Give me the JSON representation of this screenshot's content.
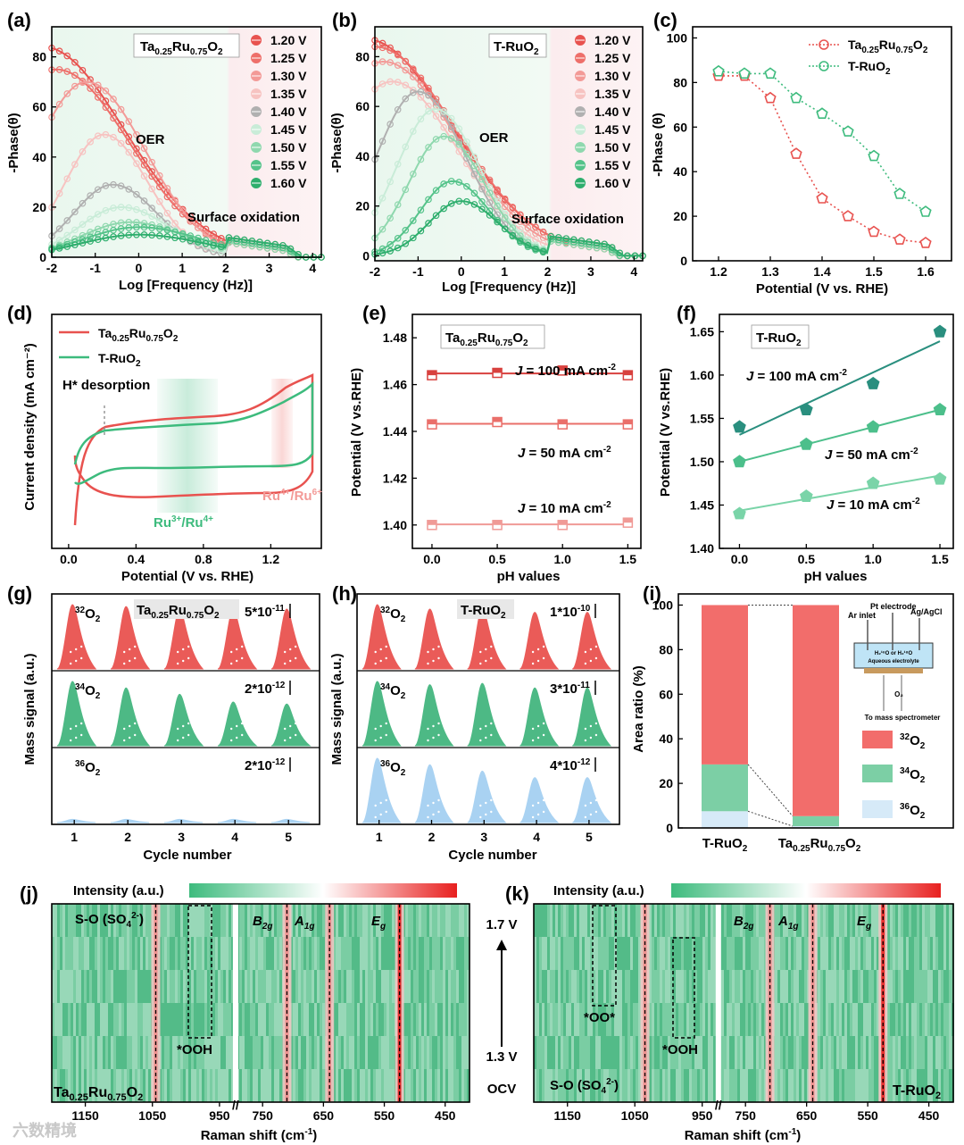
{
  "watermark": "六数精境",
  "panels": {
    "a": {
      "label": "(a)",
      "title": "Ta0.25Ru0.75O2",
      "xlabel": "Log [Frequency (Hz)]",
      "ylabel": "-Phase(θ)",
      "ann_oer": "OER",
      "ann_so": "Surface oxidation"
    },
    "b": {
      "label": "(b)",
      "title": "T-RuO2",
      "xlabel": "Log [Frequency (Hz)]",
      "ylabel": "-Phase(θ)",
      "ann_oer": "OER",
      "ann_so": "Surface oxidation"
    },
    "c": {
      "label": "(c)",
      "xlabel": "Potential (V vs. RHE)",
      "ylabel": "-Phase (θ)"
    },
    "d": {
      "label": "(d)",
      "xlabel": "Potential (V vs. RHE)",
      "ylabel": "Current density (mA cm⁻²)",
      "ann_h": "H* desorption",
      "ann_ru34": "Ru3+/Ru4+",
      "ann_ru46": "Ru4+/Ru6+",
      "legend": [
        "Ta0.25Ru0.75O2",
        "T-RuO2"
      ]
    },
    "e": {
      "label": "(e)",
      "title": "Ta0.25Ru0.75O2",
      "xlabel": "pH values",
      "ylabel": "Potential (V vs.RHE)"
    },
    "f": {
      "label": "(f)",
      "title": "T-RuO2",
      "xlabel": "pH values",
      "ylabel": "Potential (V vs.RHE)"
    },
    "g": {
      "label": "(g)",
      "title": "Ta0.25Ru0.75O2",
      "xlabel": "Cycle number",
      "ylabel": "Mass signal (a.u.)",
      "scales": [
        "5*10-11",
        "2*10-12",
        "2*10-12"
      ]
    },
    "h": {
      "label": "(h)",
      "title": "T-RuO2",
      "xlabel": "Cycle number",
      "ylabel": "Mass signal (a.u.)",
      "scales": [
        "1*10-10",
        "3*10-11",
        "4*10-12"
      ]
    },
    "i": {
      "label": "(i)",
      "ylabel": "Area ratio (%)",
      "legend": [
        "32O2",
        "34O2",
        "36O2"
      ],
      "schematic": {
        "ar_inlet": "Ar inlet",
        "pt": "Pt  electrode",
        "ag": "Ag/AgCl",
        "electrolyte1": "H₂¹⁶O or H₂¹⁸O",
        "electrolyte2": "Aqueous electrolyte",
        "o2": "O₂",
        "ms": "To mass spectrometer"
      }
    },
    "j": {
      "label": "(j)",
      "sample": "Ta0.25Ru0.75O2",
      "intensity": "Intensity (a.u.)",
      "xlabel": "Raman shift (cm-1)",
      "ann_so": "S-O (SO42-)",
      "ann_ooh": "*OOH"
    },
    "k": {
      "label": "(k)",
      "sample": "T-RuO2",
      "intensity": "Intensity (a.u.)",
      "xlabel": "Raman shift (cm-1)",
      "ann_so": "S-O (SO42-)",
      "ann_oo": "*OO*",
      "ann_ooh": "*OOH",
      "v_top": "1.7 V",
      "v_bottom": "1.3 V",
      "ocv": "OCV"
    }
  },
  "colors": {
    "red": "#e8524f",
    "green": "#3dbb7d",
    "blue": "#a9d2f2",
    "darkgreen": "#2f9a7a"
  },
  "chart_data": [
    {
      "id": "a",
      "type": "line",
      "title": "Ta0.25Ru0.75O2",
      "xlabel": "Log [Frequency (Hz)]",
      "ylabel": "-Phase(θ)",
      "xlim": [
        -2,
        4.2
      ],
      "ylim": [
        0,
        92
      ],
      "xticks": [
        -2,
        -1,
        0,
        1,
        2,
        3,
        4
      ],
      "yticks": [
        0,
        20,
        40,
        60,
        80
      ],
      "series": [
        {
          "name": "1.20 V",
          "color": "#e8524f",
          "peak_x": -2.2,
          "peak_y": 84,
          "width": 2.2
        },
        {
          "name": "1.25 V",
          "color": "#ee6f6a",
          "peak_x": -1.9,
          "peak_y": 75,
          "width": 2.0
        },
        {
          "name": "1.30 V",
          "color": "#f39a97",
          "peak_x": -1.2,
          "peak_y": 70,
          "width": 1.6
        },
        {
          "name": "1.35 V",
          "color": "#f7c3c1",
          "peak_x": -0.8,
          "peak_y": 49,
          "width": 1.2
        },
        {
          "name": "1.40 V",
          "color": "#b0b0b0",
          "peak_x": -0.6,
          "peak_y": 29,
          "width": 1.2
        },
        {
          "name": "1.45 V",
          "color": "#c9ecd8",
          "peak_x": -0.4,
          "peak_y": 20,
          "width": 1.3
        },
        {
          "name": "1.50 V",
          "color": "#8fd8ae",
          "peak_x": -0.2,
          "peak_y": 14,
          "width": 1.5
        },
        {
          "name": "1.55 V",
          "color": "#55c38a",
          "peak_x": 0.0,
          "peak_y": 12,
          "width": 1.7
        },
        {
          "name": "1.60 V",
          "color": "#2eae6d",
          "peak_x": 0.0,
          "peak_y": 9,
          "width": 1.8
        }
      ]
    },
    {
      "id": "b",
      "type": "line",
      "title": "T-RuO2",
      "xlabel": "Log [Frequency (Hz)]",
      "ylabel": "-Phase(θ)",
      "xlim": [
        -2,
        4.2
      ],
      "ylim": [
        -2,
        92
      ],
      "xticks": [
        -2,
        -1,
        0,
        1,
        2,
        3,
        4
      ],
      "yticks": [
        0,
        20,
        40,
        60,
        80
      ],
      "series": [
        {
          "name": "1.20 V",
          "color": "#e8524f",
          "peak_x": -2.2,
          "peak_y": 87,
          "width": 2.3
        },
        {
          "name": "1.25 V",
          "color": "#ee6f6a",
          "peak_x": -2.0,
          "peak_y": 84,
          "width": 2.2
        },
        {
          "name": "1.30 V",
          "color": "#f39a97",
          "peak_x": -1.8,
          "peak_y": 78,
          "width": 2.0
        },
        {
          "name": "1.35 V",
          "color": "#f7c3c1",
          "peak_x": -1.6,
          "peak_y": 70,
          "width": 1.8
        },
        {
          "name": "1.40 V",
          "color": "#b0b0b0",
          "peak_x": -1.0,
          "peak_y": 66,
          "width": 1.3
        },
        {
          "name": "1.45 V",
          "color": "#c9ecd8",
          "peak_x": -0.6,
          "peak_y": 59,
          "width": 1.2
        },
        {
          "name": "1.50 V",
          "color": "#8fd8ae",
          "peak_x": -0.4,
          "peak_y": 48,
          "width": 1.1
        },
        {
          "name": "1.55 V",
          "color": "#55c38a",
          "peak_x": -0.2,
          "peak_y": 30,
          "width": 1.0
        },
        {
          "name": "1.60 V",
          "color": "#2eae6d",
          "peak_x": 0.0,
          "peak_y": 22,
          "width": 1.0
        }
      ]
    },
    {
      "id": "c",
      "type": "line",
      "xlabel": "Potential (V vs. RHE)",
      "ylabel": "-Phase (θ)",
      "xlim": [
        1.15,
        1.65
      ],
      "ylim": [
        0,
        105
      ],
      "xticks": [
        1.2,
        1.3,
        1.4,
        1.5,
        1.6
      ],
      "yticks": [
        0,
        20,
        40,
        60,
        80,
        100
      ],
      "x": [
        1.2,
        1.25,
        1.3,
        1.35,
        1.4,
        1.45,
        1.5,
        1.55,
        1.6
      ],
      "series": [
        {
          "name": "Ta0.25Ru0.75O2",
          "color": "#e8524f",
          "values": [
            83,
            83,
            73,
            48,
            28,
            20,
            13,
            9.5,
            8
          ]
        },
        {
          "name": "T-RuO2",
          "color": "#3dbb7d",
          "values": [
            85,
            84,
            84,
            73,
            66,
            58,
            47,
            30,
            22
          ]
        }
      ]
    },
    {
      "id": "d",
      "type": "line",
      "xlabel": "Potential (V vs. RHE)",
      "ylabel": "Current density (mA cm-2)",
      "xlim": [
        -0.1,
        1.5
      ],
      "xticks": [
        0.0,
        0.4,
        0.8,
        1.2
      ],
      "series": [
        {
          "name": "Ta0.25Ru0.75O2",
          "color": "#e8524f"
        },
        {
          "name": "T-RuO2",
          "color": "#3dbb7d"
        }
      ]
    },
    {
      "id": "e",
      "type": "scatter",
      "title": "Ta0.25Ru0.75O2",
      "xlabel": "pH values",
      "ylabel": "Potential (V vs.RHE)",
      "xlim": [
        -0.15,
        1.6
      ],
      "ylim": [
        1.39,
        1.49
      ],
      "xticks": [
        0.0,
        0.5,
        1.0,
        1.5
      ],
      "yticks": [
        1.4,
        1.42,
        1.44,
        1.46,
        1.48
      ],
      "x": [
        0.0,
        0.5,
        1.0,
        1.5
      ],
      "series": [
        {
          "name": "J = 100 mA cm-2",
          "color": "#d8413e",
          "values": [
            1.464,
            1.465,
            1.466,
            1.464
          ]
        },
        {
          "name": "J = 50 mA cm-2",
          "color": "#ea6f6a",
          "values": [
            1.443,
            1.444,
            1.443,
            1.443
          ]
        },
        {
          "name": "J = 10 mA cm-2",
          "color": "#f09a96",
          "values": [
            1.4,
            1.4,
            1.4,
            1.401
          ]
        }
      ]
    },
    {
      "id": "f",
      "type": "scatter",
      "title": "T-RuO2",
      "xlabel": "pH values",
      "ylabel": "Potential (V vs.RHE)",
      "xlim": [
        -0.15,
        1.6
      ],
      "ylim": [
        1.4,
        1.67
      ],
      "xticks": [
        0.0,
        0.5,
        1.0,
        1.5
      ],
      "yticks": [
        1.4,
        1.45,
        1.5,
        1.55,
        1.6,
        1.65
      ],
      "x": [
        0.0,
        0.5,
        1.0,
        1.5
      ],
      "series": [
        {
          "name": "J = 100 mA cm-2",
          "color": "#2a8f7f",
          "values": [
            1.54,
            1.56,
            1.59,
            1.65
          ]
        },
        {
          "name": "J = 50 mA cm-2",
          "color": "#4cbf8b",
          "values": [
            1.5,
            1.52,
            1.54,
            1.56
          ]
        },
        {
          "name": "J = 10 mA cm-2",
          "color": "#7ad4a8",
          "values": [
            1.44,
            1.46,
            1.475,
            1.48
          ]
        }
      ]
    },
    {
      "id": "g",
      "type": "area",
      "title": "Ta0.25Ru0.75O2",
      "xlabel": "Cycle number",
      "ylabel": "Mass signal (a.u.)",
      "categories": [
        "1",
        "2",
        "3",
        "4",
        "5"
      ],
      "series": [
        {
          "name": "32O2",
          "color": "#ea5b58",
          "values": [
            1,
            0.97,
            0.93,
            0.93,
            0.93
          ]
        },
        {
          "name": "34O2",
          "color": "#4db985",
          "values": [
            1,
            0.9,
            0.8,
            0.68,
            0.65
          ]
        },
        {
          "name": "36O2",
          "color": "#a9d2f2",
          "values": [
            0.05,
            0.05,
            0.05,
            0.05,
            0.05
          ]
        }
      ]
    },
    {
      "id": "h",
      "type": "area",
      "title": "T-RuO2",
      "xlabel": "Cycle number",
      "ylabel": "Mass signal (a.u.)",
      "categories": [
        "1",
        "2",
        "3",
        "4",
        "5"
      ],
      "series": [
        {
          "name": "32O2",
          "color": "#ea5b58",
          "values": [
            1,
            0.93,
            0.95,
            0.88,
            0.88
          ]
        },
        {
          "name": "34O2",
          "color": "#4db985",
          "values": [
            1,
            0.95,
            0.97,
            0.9,
            0.9
          ]
        },
        {
          "name": "36O2",
          "color": "#a9d2f2",
          "values": [
            1,
            0.9,
            0.8,
            0.7,
            0.7
          ]
        }
      ]
    },
    {
      "id": "i",
      "type": "bar",
      "stacked": true,
      "ylabel": "Area ratio (%)",
      "ylim": [
        0,
        105
      ],
      "yticks": [
        0,
        20,
        40,
        60,
        80,
        100
      ],
      "categories": [
        "T-RuO2",
        "Ta0.25Ru0.75O2"
      ],
      "series": [
        {
          "name": "36O2",
          "color": "#d6eaf8",
          "values": [
            7.5,
            0.8
          ]
        },
        {
          "name": "34O2",
          "color": "#7ccfa5",
          "values": [
            21,
            4.5
          ]
        },
        {
          "name": "32O2",
          "color": "#f26d6b",
          "values": [
            71.5,
            94.7
          ]
        }
      ]
    },
    {
      "id": "j",
      "type": "heatmap",
      "sample": "Ta0.25Ru0.75O2",
      "xlabel": "Raman shift (cm-1)",
      "xticks_left": [
        1150,
        1050,
        950
      ],
      "xticks_right": [
        750,
        650,
        550,
        450
      ],
      "xrange_left": [
        1200,
        930
      ],
      "xrange_right": [
        790,
        410
      ],
      "peaks": [
        {
          "name": "B2g",
          "x": 710
        },
        {
          "name": "A1g",
          "x": 640
        },
        {
          "name": "Eg",
          "x": 525
        },
        {
          "name": "S-O",
          "x": 1045
        }
      ],
      "rows": 6
    },
    {
      "id": "k",
      "type": "heatmap",
      "sample": "T-RuO2",
      "xlabel": "Raman shift (cm-1)",
      "xticks_left": [
        1150,
        1050,
        950
      ],
      "xticks_right": [
        750,
        650,
        550,
        450
      ],
      "xrange_left": [
        1200,
        930
      ],
      "xrange_right": [
        790,
        410
      ],
      "peaks": [
        {
          "name": "B2g",
          "x": 710
        },
        {
          "name": "A1g",
          "x": 640
        },
        {
          "name": "Eg",
          "x": 525
        },
        {
          "name": "S-O",
          "x": 1035
        }
      ],
      "rows": 6
    }
  ]
}
